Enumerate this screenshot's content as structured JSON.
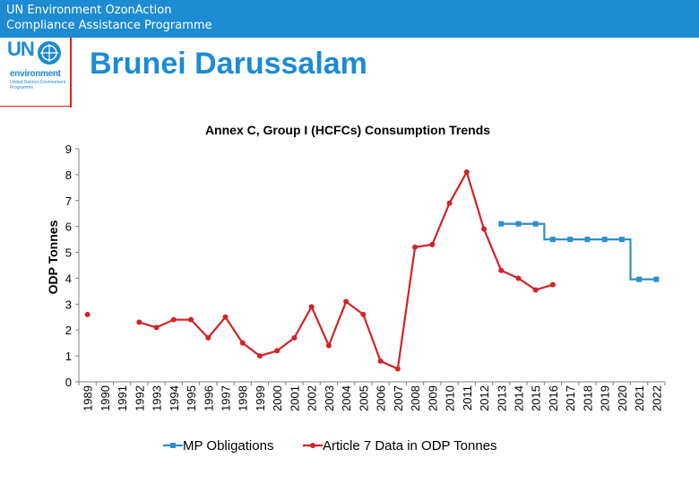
{
  "header": {
    "line1": "UN Environment OzonAction",
    "line2": "Compliance Assistance Programme"
  },
  "logo": {
    "un": "UN",
    "env": "environment",
    "small": "United Nations Environment Programme"
  },
  "country_title": "Brunei Darussalam",
  "colors": {
    "header_bg": "#1d8bd1",
    "title_blue": "#1d8bd1",
    "accent_red": "#e2231a",
    "mp_series": "#2e8fc9",
    "art7_series": "#d0232a"
  },
  "chart_data": {
    "type": "line",
    "title": "Annex C, Group I (HCFCs) Consumption Trends",
    "ylabel": "ODP Tonnes",
    "xlabel": "",
    "ylim": [
      0,
      9
    ],
    "yticks": [
      0,
      1,
      2,
      3,
      4,
      5,
      6,
      7,
      8,
      9
    ],
    "grid": false,
    "legend_position": "bottom",
    "categories": [
      "1989",
      "1990",
      "1991",
      "1992",
      "1993",
      "1994",
      "1995",
      "1996",
      "1997",
      "1998",
      "1999",
      "2000",
      "2001",
      "2002",
      "2003",
      "2004",
      "2005",
      "2006",
      "2007",
      "2008",
      "2009",
      "2010",
      "2011",
      "2012",
      "2013",
      "2014",
      "2015",
      "2016",
      "2017",
      "2018",
      "2019",
      "2020",
      "2021",
      "2022"
    ],
    "series": [
      {
        "name": "MP Obligations",
        "style": "step",
        "color": "#2e8fc9",
        "marker": "square",
        "values": [
          null,
          null,
          null,
          null,
          null,
          null,
          null,
          null,
          null,
          null,
          null,
          null,
          null,
          null,
          null,
          null,
          null,
          null,
          null,
          null,
          null,
          null,
          null,
          null,
          6.1,
          6.1,
          6.1,
          5.5,
          5.5,
          5.5,
          5.5,
          5.5,
          3.96,
          3.96
        ]
      },
      {
        "name": "Article 7 Data in ODP Tonnes",
        "style": "line",
        "color": "#d0232a",
        "marker": "circle",
        "values": [
          2.6,
          null,
          null,
          2.3,
          2.1,
          2.4,
          2.4,
          1.7,
          2.5,
          1.5,
          1.0,
          1.2,
          1.7,
          2.9,
          1.4,
          3.1,
          2.6,
          0.8,
          0.5,
          5.2,
          5.3,
          6.9,
          8.1,
          5.9,
          4.3,
          4.0,
          3.55,
          3.75,
          null,
          null,
          null,
          null,
          null,
          null
        ]
      }
    ]
  }
}
